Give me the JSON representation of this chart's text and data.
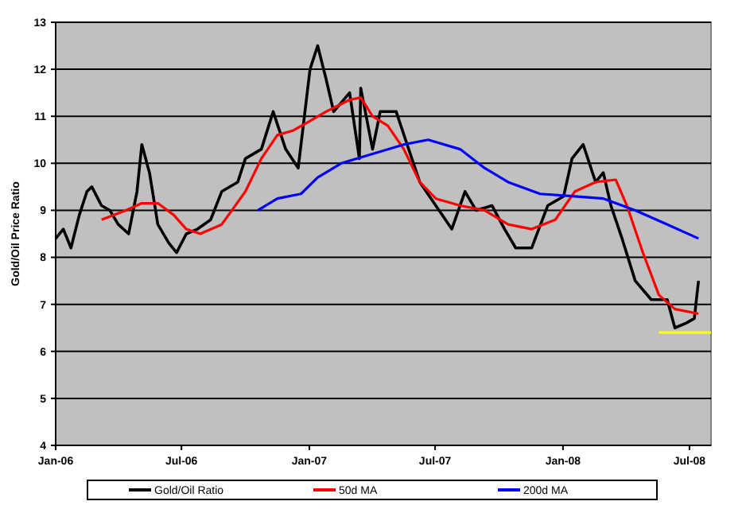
{
  "chart_data": {
    "type": "line",
    "ylabel": "Gold/Oil Price Ratio",
    "xlim": [
      "2006-01-01",
      "2008-08-01"
    ],
    "xticks": [
      {
        "value": "2006-01-01",
        "label": "Jan-06"
      },
      {
        "value": "2006-07-01",
        "label": "Jul-06"
      },
      {
        "value": "2007-01-01",
        "label": "Jan-07"
      },
      {
        "value": "2007-07-01",
        "label": "Jul-07"
      },
      {
        "value": "2008-01-01",
        "label": "Jan-08"
      },
      {
        "value": "2008-07-01",
        "label": "Jul-08"
      }
    ],
    "ylim": [
      4,
      13
    ],
    "yticks": [
      4,
      5,
      6,
      7,
      8,
      9,
      10,
      11,
      12,
      13
    ],
    "grid": "y",
    "legend": "bottom",
    "line_style": "solid",
    "marker": "none",
    "series": [
      {
        "name": "Gold/Oil Ratio",
        "color": "#000000",
        "x": [
          "2006-01-01",
          "2006-01-12",
          "2006-01-23",
          "2006-02-04",
          "2006-02-15",
          "2006-02-22",
          "2006-03-08",
          "2006-03-20",
          "2006-04-01",
          "2006-04-16",
          "2006-04-28",
          "2006-05-05",
          "2006-05-16",
          "2006-05-28",
          "2006-06-13",
          "2006-06-24",
          "2006-07-08",
          "2006-07-24",
          "2006-08-12",
          "2006-08-28",
          "2006-09-20",
          "2006-10-01",
          "2006-10-24",
          "2006-11-10",
          "2006-11-28",
          "2006-12-16",
          "2007-01-02",
          "2007-01-13",
          "2007-01-25",
          "2007-02-05",
          "2007-02-28",
          "2007-03-14",
          "2007-03-16",
          "2007-04-02",
          "2007-04-13",
          "2007-05-06",
          "2007-05-24",
          "2007-06-09",
          "2007-07-02",
          "2007-07-25",
          "2007-08-13",
          "2007-08-29",
          "2007-09-21",
          "2007-10-09",
          "2007-10-25",
          "2007-11-17",
          "2007-12-10",
          "2008-01-02",
          "2008-01-14",
          "2008-01-30",
          "2008-02-17",
          "2008-02-28",
          "2008-03-10",
          "2008-03-26",
          "2008-04-14",
          "2008-05-07",
          "2008-05-30",
          "2008-06-10",
          "2008-06-26",
          "2008-07-08",
          "2008-07-14"
        ],
        "values": [
          8.4,
          8.6,
          8.2,
          8.9,
          9.4,
          9.5,
          9.1,
          9.0,
          8.7,
          8.5,
          9.4,
          10.4,
          9.8,
          8.7,
          8.3,
          8.1,
          8.5,
          8.6,
          8.8,
          9.4,
          9.6,
          10.1,
          10.3,
          11.1,
          10.3,
          9.9,
          12.0,
          12.5,
          11.8,
          11.1,
          11.5,
          10.1,
          11.6,
          10.3,
          11.1,
          11.1,
          10.3,
          9.6,
          9.1,
          8.6,
          9.4,
          9.0,
          9.1,
          8.6,
          8.2,
          8.2,
          9.1,
          9.3,
          10.1,
          10.4,
          9.6,
          9.8,
          9.1,
          8.4,
          7.5,
          7.1,
          7.1,
          6.5,
          6.6,
          6.7,
          7.5
        ]
      },
      {
        "name": "50d MA",
        "color": "#ff0000",
        "x": [
          "2006-03-08",
          "2006-04-12",
          "2006-05-05",
          "2006-05-28",
          "2006-06-20",
          "2006-07-08",
          "2006-07-28",
          "2006-08-28",
          "2006-10-01",
          "2006-10-24",
          "2006-11-16",
          "2006-12-09",
          "2007-01-02",
          "2007-01-25",
          "2007-02-28",
          "2007-03-16",
          "2007-04-02",
          "2007-04-24",
          "2007-05-17",
          "2007-06-09",
          "2007-07-02",
          "2007-08-06",
          "2007-09-10",
          "2007-10-14",
          "2007-11-17",
          "2007-12-21",
          "2008-01-18",
          "2008-02-17",
          "2008-03-17",
          "2008-04-02",
          "2008-04-25",
          "2008-05-18",
          "2008-06-10",
          "2008-07-14"
        ],
        "values": [
          8.8,
          9.0,
          9.15,
          9.15,
          8.9,
          8.6,
          8.5,
          8.7,
          9.4,
          10.1,
          10.6,
          10.7,
          10.9,
          11.1,
          11.35,
          11.4,
          11.0,
          10.8,
          10.3,
          9.6,
          9.25,
          9.1,
          9.0,
          8.7,
          8.6,
          8.8,
          9.4,
          9.6,
          9.65,
          9.1,
          8.1,
          7.2,
          6.9,
          6.8
        ]
      },
      {
        "name": "200d MA",
        "color": "#0000ff",
        "x": [
          "2006-10-19",
          "2006-11-16",
          "2006-12-20",
          "2007-01-13",
          "2007-02-16",
          "2007-04-02",
          "2007-05-17",
          "2007-06-21",
          "2007-08-06",
          "2007-09-10",
          "2007-10-14",
          "2007-11-29",
          "2008-01-14",
          "2008-02-28",
          "2008-04-14",
          "2008-05-30",
          "2008-07-14"
        ],
        "values": [
          9.0,
          9.25,
          9.35,
          9.7,
          10.0,
          10.2,
          10.4,
          10.5,
          10.3,
          9.9,
          9.6,
          9.35,
          9.3,
          9.25,
          9.0,
          8.7,
          8.4
        ]
      },
      {
        "color": "#ffff00",
        "x": [
          "2008-05-18",
          "2008-08-01"
        ],
        "values": [
          6.4,
          6.4
        ]
      }
    ]
  }
}
